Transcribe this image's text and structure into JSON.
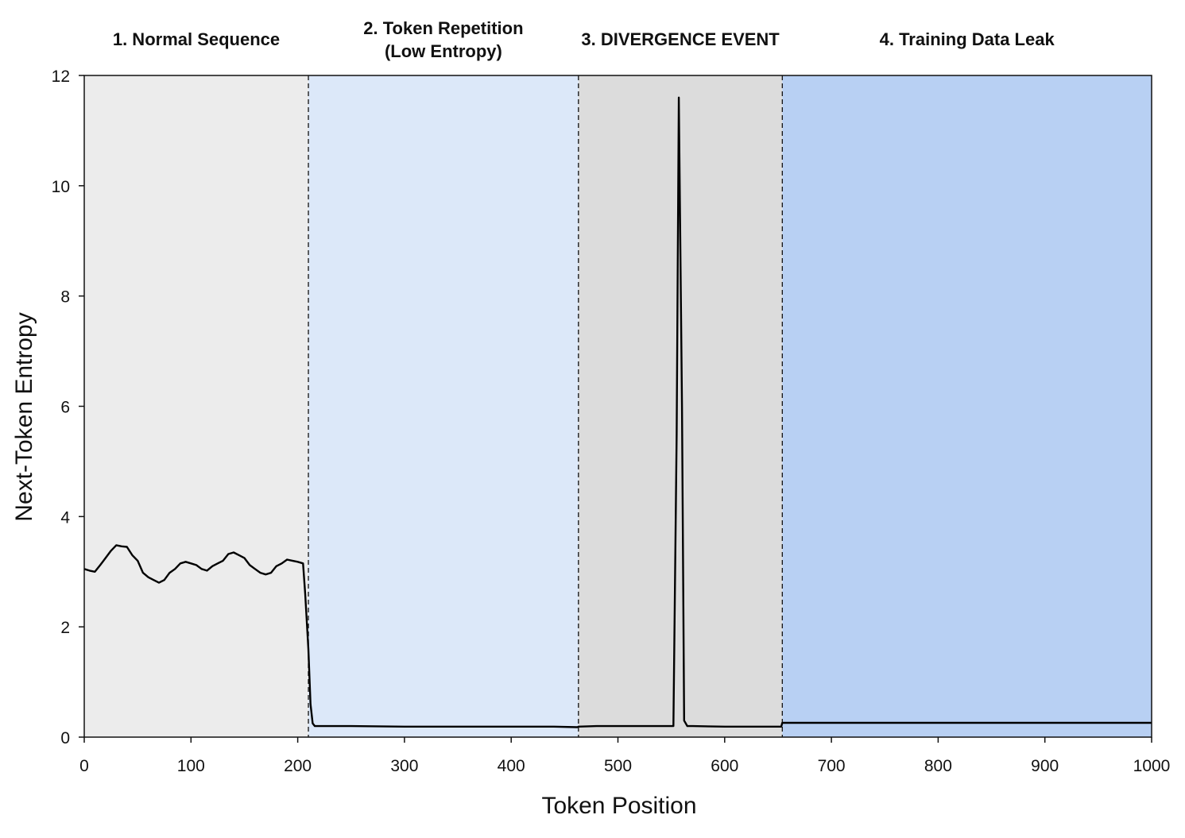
{
  "chart_data": {
    "type": "line",
    "title": "",
    "xlabel": "Token Position",
    "ylabel": "Next-Token Entropy",
    "xlim": [
      0,
      1000
    ],
    "ylim": [
      0,
      12
    ],
    "xticks": [
      0,
      100,
      200,
      300,
      400,
      500,
      600,
      700,
      800,
      900,
      1000
    ],
    "yticks": [
      0,
      2,
      4,
      6,
      8,
      10,
      12
    ],
    "grid": false,
    "regions": [
      {
        "label_lines": [
          "1. Normal Sequence"
        ],
        "start": 0,
        "end": 210,
        "color": "#ececec"
      },
      {
        "label_lines": [
          "2. Token Repetition",
          "(Low Entropy)"
        ],
        "start": 210,
        "end": 463,
        "color": "#dce8f9"
      },
      {
        "label_lines": [
          "3. DIVERGENCE EVENT"
        ],
        "start": 463,
        "end": 654,
        "color": "#dcdcdc"
      },
      {
        "label_lines": [
          "4. Training Data Leak"
        ],
        "start": 654,
        "end": 1000,
        "color": "#b8d0f3"
      }
    ],
    "series": [
      {
        "x": [
          0,
          5,
          10,
          15,
          20,
          25,
          30,
          35,
          40,
          45,
          50,
          55,
          60,
          65,
          70,
          75,
          80,
          85,
          90,
          95,
          100,
          105,
          110,
          115,
          120,
          125,
          130,
          135,
          140,
          145,
          150,
          155,
          160,
          165,
          170,
          175,
          180,
          185,
          190,
          195,
          200,
          205,
          207,
          210,
          212,
          214,
          216,
          220,
          250,
          300,
          350,
          400,
          440,
          462,
          463,
          480,
          500,
          520,
          540,
          552,
          555,
          557,
          560,
          562,
          565,
          570,
          600,
          653,
          654,
          700,
          800,
          900,
          1000
        ],
        "y": [
          3.05,
          3.02,
          3.0,
          3.12,
          3.25,
          3.38,
          3.48,
          3.46,
          3.45,
          3.3,
          3.2,
          2.98,
          2.9,
          2.85,
          2.8,
          2.85,
          2.98,
          3.05,
          3.15,
          3.18,
          3.15,
          3.12,
          3.05,
          3.02,
          3.1,
          3.15,
          3.2,
          3.32,
          3.35,
          3.3,
          3.25,
          3.12,
          3.05,
          2.98,
          2.95,
          2.98,
          3.1,
          3.15,
          3.22,
          3.2,
          3.18,
          3.15,
          2.6,
          1.6,
          0.6,
          0.25,
          0.2,
          0.2,
          0.2,
          0.19,
          0.19,
          0.19,
          0.19,
          0.18,
          0.19,
          0.2,
          0.2,
          0.2,
          0.2,
          0.2,
          5.5,
          11.6,
          6.0,
          0.3,
          0.2,
          0.2,
          0.19,
          0.19,
          0.26,
          0.26,
          0.26,
          0.26,
          0.26
        ]
      }
    ]
  }
}
